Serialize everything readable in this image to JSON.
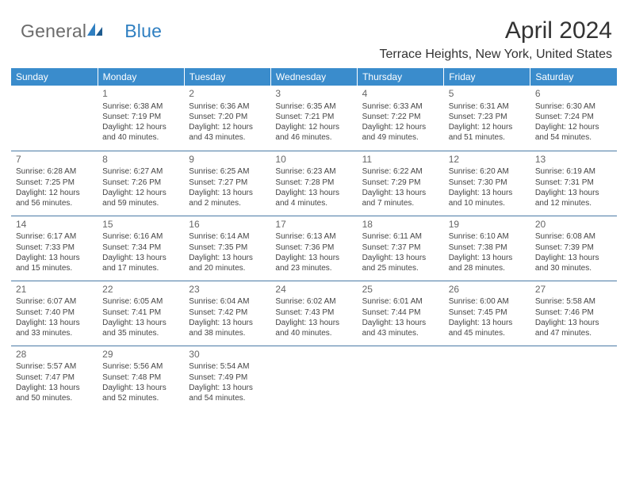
{
  "brand": {
    "part1": "General",
    "part2": "Blue"
  },
  "title": "April 2024",
  "location": "Terrace Heights, New York, United States",
  "logo_colors": {
    "text_gray": "#6b6b6b",
    "blue": "#2f7fc1",
    "header_bg": "#3a8ccc",
    "rule": "#4a7aa5"
  },
  "day_headers": [
    "Sunday",
    "Monday",
    "Tuesday",
    "Wednesday",
    "Thursday",
    "Friday",
    "Saturday"
  ],
  "weeks": [
    [
      {
        "n": "",
        "lines": [
          "",
          "",
          "",
          ""
        ]
      },
      {
        "n": "1",
        "lines": [
          "Sunrise: 6:38 AM",
          "Sunset: 7:19 PM",
          "Daylight: 12 hours",
          "and 40 minutes."
        ]
      },
      {
        "n": "2",
        "lines": [
          "Sunrise: 6:36 AM",
          "Sunset: 7:20 PM",
          "Daylight: 12 hours",
          "and 43 minutes."
        ]
      },
      {
        "n": "3",
        "lines": [
          "Sunrise: 6:35 AM",
          "Sunset: 7:21 PM",
          "Daylight: 12 hours",
          "and 46 minutes."
        ]
      },
      {
        "n": "4",
        "lines": [
          "Sunrise: 6:33 AM",
          "Sunset: 7:22 PM",
          "Daylight: 12 hours",
          "and 49 minutes."
        ]
      },
      {
        "n": "5",
        "lines": [
          "Sunrise: 6:31 AM",
          "Sunset: 7:23 PM",
          "Daylight: 12 hours",
          "and 51 minutes."
        ]
      },
      {
        "n": "6",
        "lines": [
          "Sunrise: 6:30 AM",
          "Sunset: 7:24 PM",
          "Daylight: 12 hours",
          "and 54 minutes."
        ]
      }
    ],
    [
      {
        "n": "7",
        "lines": [
          "Sunrise: 6:28 AM",
          "Sunset: 7:25 PM",
          "Daylight: 12 hours",
          "and 56 minutes."
        ]
      },
      {
        "n": "8",
        "lines": [
          "Sunrise: 6:27 AM",
          "Sunset: 7:26 PM",
          "Daylight: 12 hours",
          "and 59 minutes."
        ]
      },
      {
        "n": "9",
        "lines": [
          "Sunrise: 6:25 AM",
          "Sunset: 7:27 PM",
          "Daylight: 13 hours",
          "and 2 minutes."
        ]
      },
      {
        "n": "10",
        "lines": [
          "Sunrise: 6:23 AM",
          "Sunset: 7:28 PM",
          "Daylight: 13 hours",
          "and 4 minutes."
        ]
      },
      {
        "n": "11",
        "lines": [
          "Sunrise: 6:22 AM",
          "Sunset: 7:29 PM",
          "Daylight: 13 hours",
          "and 7 minutes."
        ]
      },
      {
        "n": "12",
        "lines": [
          "Sunrise: 6:20 AM",
          "Sunset: 7:30 PM",
          "Daylight: 13 hours",
          "and 10 minutes."
        ]
      },
      {
        "n": "13",
        "lines": [
          "Sunrise: 6:19 AM",
          "Sunset: 7:31 PM",
          "Daylight: 13 hours",
          "and 12 minutes."
        ]
      }
    ],
    [
      {
        "n": "14",
        "lines": [
          "Sunrise: 6:17 AM",
          "Sunset: 7:33 PM",
          "Daylight: 13 hours",
          "and 15 minutes."
        ]
      },
      {
        "n": "15",
        "lines": [
          "Sunrise: 6:16 AM",
          "Sunset: 7:34 PM",
          "Daylight: 13 hours",
          "and 17 minutes."
        ]
      },
      {
        "n": "16",
        "lines": [
          "Sunrise: 6:14 AM",
          "Sunset: 7:35 PM",
          "Daylight: 13 hours",
          "and 20 minutes."
        ]
      },
      {
        "n": "17",
        "lines": [
          "Sunrise: 6:13 AM",
          "Sunset: 7:36 PM",
          "Daylight: 13 hours",
          "and 23 minutes."
        ]
      },
      {
        "n": "18",
        "lines": [
          "Sunrise: 6:11 AM",
          "Sunset: 7:37 PM",
          "Daylight: 13 hours",
          "and 25 minutes."
        ]
      },
      {
        "n": "19",
        "lines": [
          "Sunrise: 6:10 AM",
          "Sunset: 7:38 PM",
          "Daylight: 13 hours",
          "and 28 minutes."
        ]
      },
      {
        "n": "20",
        "lines": [
          "Sunrise: 6:08 AM",
          "Sunset: 7:39 PM",
          "Daylight: 13 hours",
          "and 30 minutes."
        ]
      }
    ],
    [
      {
        "n": "21",
        "lines": [
          "Sunrise: 6:07 AM",
          "Sunset: 7:40 PM",
          "Daylight: 13 hours",
          "and 33 minutes."
        ]
      },
      {
        "n": "22",
        "lines": [
          "Sunrise: 6:05 AM",
          "Sunset: 7:41 PM",
          "Daylight: 13 hours",
          "and 35 minutes."
        ]
      },
      {
        "n": "23",
        "lines": [
          "Sunrise: 6:04 AM",
          "Sunset: 7:42 PM",
          "Daylight: 13 hours",
          "and 38 minutes."
        ]
      },
      {
        "n": "24",
        "lines": [
          "Sunrise: 6:02 AM",
          "Sunset: 7:43 PM",
          "Daylight: 13 hours",
          "and 40 minutes."
        ]
      },
      {
        "n": "25",
        "lines": [
          "Sunrise: 6:01 AM",
          "Sunset: 7:44 PM",
          "Daylight: 13 hours",
          "and 43 minutes."
        ]
      },
      {
        "n": "26",
        "lines": [
          "Sunrise: 6:00 AM",
          "Sunset: 7:45 PM",
          "Daylight: 13 hours",
          "and 45 minutes."
        ]
      },
      {
        "n": "27",
        "lines": [
          "Sunrise: 5:58 AM",
          "Sunset: 7:46 PM",
          "Daylight: 13 hours",
          "and 47 minutes."
        ]
      }
    ],
    [
      {
        "n": "28",
        "lines": [
          "Sunrise: 5:57 AM",
          "Sunset: 7:47 PM",
          "Daylight: 13 hours",
          "and 50 minutes."
        ]
      },
      {
        "n": "29",
        "lines": [
          "Sunrise: 5:56 AM",
          "Sunset: 7:48 PM",
          "Daylight: 13 hours",
          "and 52 minutes."
        ]
      },
      {
        "n": "30",
        "lines": [
          "Sunrise: 5:54 AM",
          "Sunset: 7:49 PM",
          "Daylight: 13 hours",
          "and 54 minutes."
        ]
      },
      {
        "n": "",
        "lines": [
          "",
          "",
          "",
          ""
        ]
      },
      {
        "n": "",
        "lines": [
          "",
          "",
          "",
          ""
        ]
      },
      {
        "n": "",
        "lines": [
          "",
          "",
          "",
          ""
        ]
      },
      {
        "n": "",
        "lines": [
          "",
          "",
          "",
          ""
        ]
      }
    ]
  ]
}
